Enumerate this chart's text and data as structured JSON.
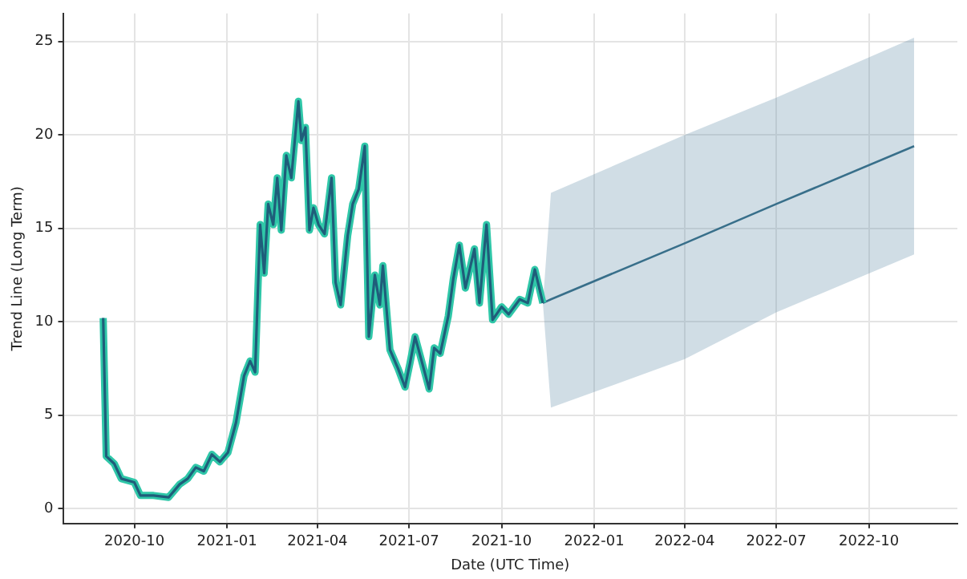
{
  "chart_data": {
    "type": "line",
    "xlabel": "Date (UTC Time)",
    "ylabel": "Trend Line (Long Term)",
    "xlim": [
      "2020-07-22",
      "2022-12-28"
    ],
    "xticks": [
      {
        "value": "2020-10",
        "label": "2020-10"
      },
      {
        "value": "2021-01",
        "label": "2021-01"
      },
      {
        "value": "2021-04",
        "label": "2021-04"
      },
      {
        "value": "2021-07",
        "label": "2021-07"
      },
      {
        "value": "2021-10",
        "label": "2021-10"
      },
      {
        "value": "2022-01",
        "label": "2022-01"
      },
      {
        "value": "2022-04",
        "label": "2022-04"
      },
      {
        "value": "2022-07",
        "label": "2022-07"
      },
      {
        "value": "2022-10",
        "label": "2022-10"
      }
    ],
    "ylim": [
      -0.8,
      26.5
    ],
    "yticks": [
      0,
      5,
      10,
      15,
      20,
      25
    ],
    "grid": true,
    "legend": false,
    "marker": "none",
    "line_style": "solid",
    "series": [
      {
        "color": "#1f5d7a",
        "x": [
          "2020-08-31",
          "2020-09-03",
          "2020-09-11",
          "2020-09-18",
          "2020-10-01",
          "2020-10-07",
          "2020-10-20",
          "2020-11-04",
          "2020-11-15",
          "2020-11-23",
          "2020-12-01",
          "2020-12-09",
          "2020-12-17",
          "2020-12-25",
          "2021-01-02",
          "2021-01-10",
          "2021-01-18",
          "2021-01-24",
          "2021-01-29",
          "2021-02-03",
          "2021-02-07",
          "2021-02-11",
          "2021-02-16",
          "2021-02-20",
          "2021-02-24",
          "2021-03-01",
          "2021-03-06",
          "2021-03-13",
          "2021-03-16",
          "2021-03-20",
          "2021-03-24",
          "2021-03-28",
          "2021-04-02",
          "2021-04-08",
          "2021-04-15",
          "2021-04-19",
          "2021-04-24",
          "2021-05-01",
          "2021-05-06",
          "2021-05-12",
          "2021-05-18",
          "2021-05-22",
          "2021-05-28",
          "2021-06-02",
          "2021-06-05",
          "2021-06-12",
          "2021-06-20",
          "2021-06-27",
          "2021-07-02",
          "2021-07-07",
          "2021-07-14",
          "2021-07-21",
          "2021-07-26",
          "2021-08-01",
          "2021-08-09",
          "2021-08-14",
          "2021-08-20",
          "2021-08-26",
          "2021-09-04",
          "2021-09-09",
          "2021-09-16",
          "2021-09-22",
          "2021-10-01",
          "2021-10-08",
          "2021-10-19",
          "2021-10-27",
          "2021-11-03",
          "2021-11-11"
        ],
        "values": [
          10.2,
          2.8,
          2.4,
          1.6,
          1.4,
          0.7,
          0.7,
          0.6,
          1.3,
          1.6,
          2.2,
          2.0,
          2.9,
          2.5,
          3.0,
          4.6,
          7.1,
          7.9,
          7.3,
          15.2,
          12.6,
          16.3,
          15.2,
          17.7,
          14.9,
          18.9,
          17.7,
          21.8,
          19.7,
          20.4,
          14.9,
          16.1,
          15.2,
          14.7,
          17.7,
          12.1,
          10.9,
          14.6,
          16.3,
          17.1,
          19.4,
          9.2,
          12.5,
          10.9,
          13.0,
          8.5,
          7.5,
          6.5,
          7.8,
          9.2,
          7.8,
          6.4,
          8.6,
          8.3,
          10.3,
          12.3,
          14.1,
          11.8,
          13.9,
          11.0,
          15.2,
          10.1,
          10.8,
          10.4,
          11.2,
          11.0,
          12.8,
          11.0
        ]
      },
      {
        "color": "#1f5d7a",
        "x": [
          "2021-11-11",
          "2021-11-19",
          "2022-04-01",
          "2022-07-01",
          "2022-11-15"
        ],
        "values": [
          11.0,
          11.2,
          14.2,
          16.3,
          19.4
        ],
        "lower": [
          11.0,
          5.4,
          8.0,
          10.5,
          13.6
        ],
        "upper": [
          11.0,
          16.9,
          20.0,
          22.0,
          25.2
        ]
      }
    ]
  }
}
